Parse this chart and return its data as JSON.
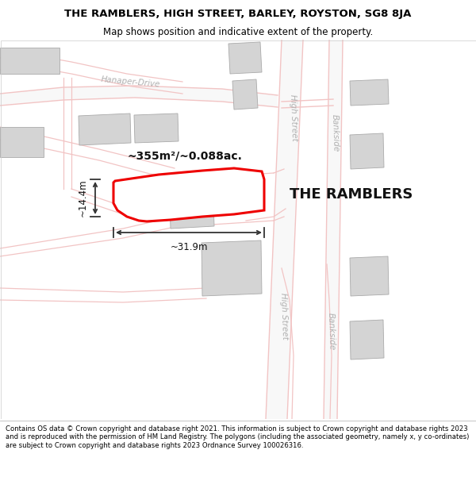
{
  "title_line1": "THE RAMBLERS, HIGH STREET, BARLEY, ROYSTON, SG8 8JA",
  "title_line2": "Map shows position and indicative extent of the property.",
  "footer_text": "Contains OS data © Crown copyright and database right 2021. This information is subject to Crown copyright and database rights 2023 and is reproduced with the permission of HM Land Registry. The polygons (including the associated geometry, namely x, y co-ordinates) are subject to Crown copyright and database rights 2023 Ordnance Survey 100026316.",
  "property_label": "THE RAMBLERS",
  "area_label": "~355m²/~0.088ac.",
  "dim_width": "~31.9m",
  "dim_height": "~14.4m",
  "bg_color": "#ffffff",
  "road_color_light": "#f2c4c4",
  "road_fill": "#ffffff",
  "building_fill": "#d4d4d4",
  "building_edge": "#aaaaaa",
  "property_stroke": "#ee0000",
  "property_fill": "#ffffff",
  "label_color": "#c0b0b0",
  "street_label_color": "#b0b0b0",
  "dim_color": "#333333",
  "area_label_fontsize": 10,
  "property_label_fontsize": 13
}
